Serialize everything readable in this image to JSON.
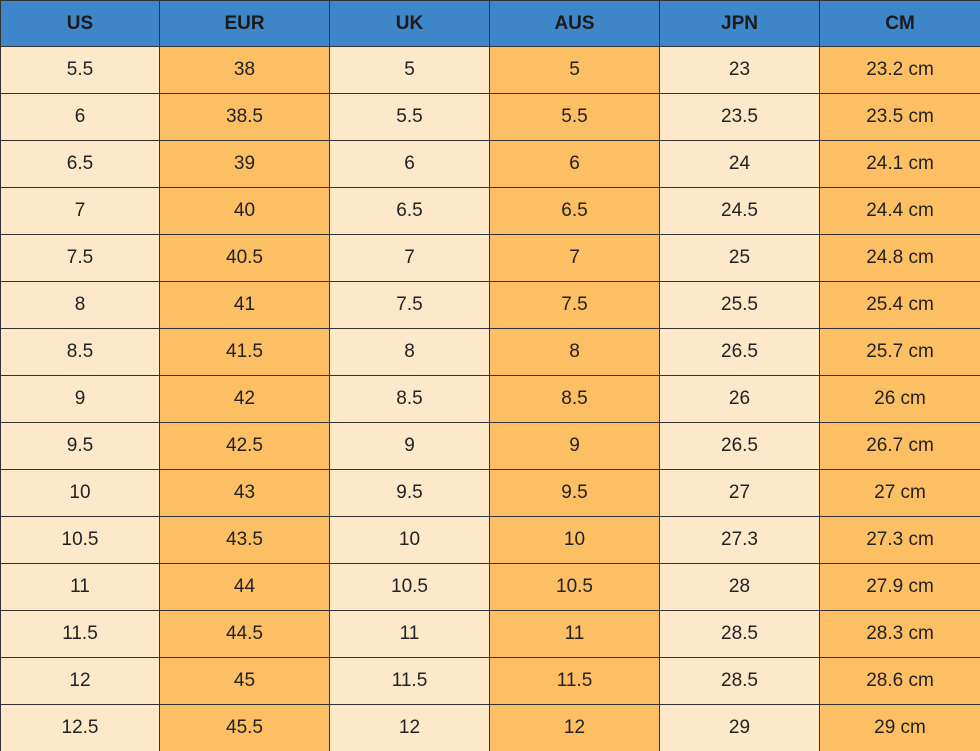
{
  "table": {
    "header": [
      "US",
      "EUR",
      "UK",
      "AUS",
      "JPN",
      "CM"
    ],
    "rows": [
      [
        "5.5",
        "38",
        "5",
        "5",
        "23",
        "23.2 cm"
      ],
      [
        "6",
        "38.5",
        "5.5",
        "5.5",
        "23.5",
        "23.5 cm"
      ],
      [
        "6.5",
        "39",
        "6",
        "6",
        "24",
        "24.1 cm"
      ],
      [
        "7",
        "40",
        "6.5",
        "6.5",
        "24.5",
        "24.4 cm"
      ],
      [
        "7.5",
        "40.5",
        "7",
        "7",
        "25",
        "24.8 cm"
      ],
      [
        "8",
        "41",
        "7.5",
        "7.5",
        "25.5",
        "25.4 cm"
      ],
      [
        "8.5",
        "41.5",
        "8",
        "8",
        "26.5",
        "25.7 cm"
      ],
      [
        "9",
        "42",
        "8.5",
        "8.5",
        "26",
        "26 cm"
      ],
      [
        "9.5",
        "42.5",
        "9",
        "9",
        "26.5",
        "26.7 cm"
      ],
      [
        "10",
        "43",
        "9.5",
        "9.5",
        "27",
        "27 cm"
      ],
      [
        "10.5",
        "43.5",
        "10",
        "10",
        "27.3",
        "27.3 cm"
      ],
      [
        "11",
        "44",
        "10.5",
        "10.5",
        "28",
        "27.9 cm"
      ],
      [
        "11.5",
        "44.5",
        "11",
        "11",
        "28.5",
        "28.3 cm"
      ],
      [
        "12",
        "45",
        "11.5",
        "11.5",
        "28.5",
        "28.6 cm"
      ],
      [
        "12.5",
        "45.5",
        "12",
        "12",
        "29",
        "29 cm"
      ]
    ]
  }
}
